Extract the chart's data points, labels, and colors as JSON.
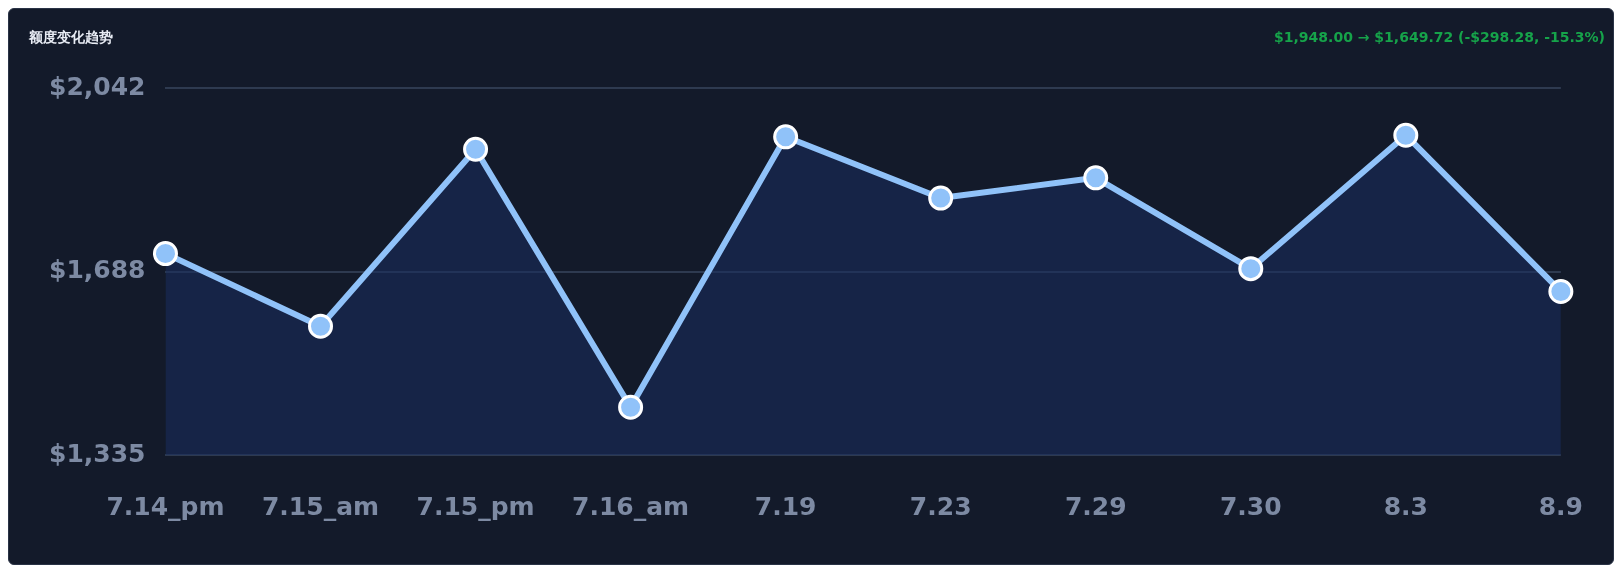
{
  "chart_data": {
    "type": "area",
    "title": "额度变化趋势",
    "annotations": [
      "$1,948.00 → $1,649.72 (-$298.28, -15.3%)"
    ],
    "categories": [
      "7.14_pm",
      "7.15_am",
      "7.15_pm",
      "7.16_am",
      "7.19",
      "7.23",
      "7.29",
      "7.30",
      "8.3",
      "8.9"
    ],
    "series": [
      {
        "color": "#90c2f9",
        "values": [
          1723,
          1583,
          1924,
          1427,
          1948,
          1830,
          1869,
          1694,
          1951,
          1650
        ]
      }
    ],
    "ylim": [
      1335,
      2042
    ],
    "yticks": [
      {
        "value": 1335,
        "label": "$1,335"
      },
      {
        "value": 1688,
        "label": "$1,688"
      },
      {
        "value": 2042,
        "label": "$2,042"
      }
    ],
    "grid": "y",
    "legend": false,
    "marker": "circle",
    "line_style": "solid"
  }
}
